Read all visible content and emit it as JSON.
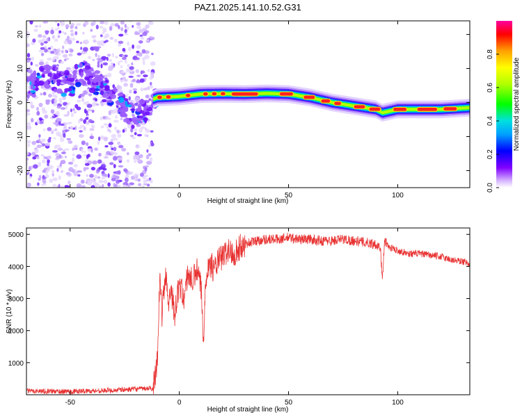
{
  "title": "PAZ1.2025.141.10.52.G31",
  "chart_data": [
    {
      "type": "heatmap",
      "name": "spectrogram",
      "xlabel": "Height of straight line (km)",
      "ylabel": "Frequency (Hz)",
      "xlim": [
        -70,
        133
      ],
      "ylim": [
        -25,
        24
      ],
      "xticks": [
        -50,
        0,
        50,
        100
      ],
      "yticks": [
        20,
        10,
        0,
        -10,
        -20
      ],
      "xtick_labels": [
        "-50",
        "0",
        "50",
        "100"
      ],
      "ytick_labels": [
        "20",
        "10",
        "0",
        "-10",
        "-20"
      ],
      "noise_region_x": [
        -70,
        -12
      ],
      "ridge": {
        "x": [
          -70,
          -65,
          -60,
          -55,
          -50,
          -45,
          -40,
          -35,
          -30,
          -25,
          -20,
          -15,
          -12,
          -10,
          0,
          10,
          20,
          30,
          40,
          50,
          60,
          70,
          80,
          90,
          93,
          100,
          110,
          120,
          133
        ],
        "y": [
          4,
          6,
          8,
          6,
          5,
          9,
          7,
          4,
          2,
          -1,
          -5,
          -2,
          1,
          1.5,
          1.8,
          2.5,
          2.6,
          2.5,
          2.7,
          2.5,
          1.5,
          0,
          -1,
          -2,
          -3,
          -2,
          -2,
          -2,
          -1.5
        ]
      },
      "colorbar": {
        "label": "Normalized spectral amplitude",
        "ticks": [
          0.0,
          0.2,
          0.4,
          0.6,
          0.8
        ],
        "tick_labels": [
          "0.0",
          "0.2",
          "0.4",
          "0.6",
          "0.8"
        ],
        "range": [
          0,
          1
        ],
        "colors": [
          "#ffffff",
          "#d8b8ff",
          "#8000ff",
          "#0000ff",
          "#00a0ff",
          "#00e0e0",
          "#00ff00",
          "#b0ff00",
          "#ffff00",
          "#ffa000",
          "#ff0000",
          "#ff00a0"
        ]
      }
    },
    {
      "type": "line",
      "name": "snr",
      "xlabel": "Height of straight line (km)",
      "ylabel": "SNR (10 * v/v)",
      "xlim": [
        -70,
        133
      ],
      "ylim": [
        0,
        5200
      ],
      "xticks": [
        -50,
        0,
        50,
        100
      ],
      "yticks": [
        1000,
        2000,
        3000,
        4000,
        5000
      ],
      "xtick_labels": [
        "-50",
        "0",
        "50",
        "100"
      ],
      "ytick_labels": [
        "1000",
        "2000",
        "3000",
        "4000",
        "5000"
      ],
      "color": "#e83030",
      "series": [
        {
          "name": "SNR",
          "x": [
            -70,
            -60,
            -50,
            -40,
            -30,
            -20,
            -12,
            -10,
            -9,
            -8,
            -7,
            -6,
            -5,
            -4,
            -2,
            0,
            2,
            4,
            6,
            8,
            10,
            11,
            12,
            14,
            16,
            18,
            20,
            22,
            25,
            28,
            30,
            35,
            40,
            45,
            50,
            55,
            60,
            65,
            70,
            75,
            80,
            85,
            90,
            92,
            93,
            94,
            96,
            100,
            105,
            110,
            115,
            120,
            125,
            130,
            133
          ],
          "y": [
            120,
            110,
            100,
            120,
            140,
            180,
            200,
            1200,
            3600,
            2500,
            3300,
            3700,
            2800,
            3400,
            2500,
            3500,
            3000,
            3800,
            3500,
            3900,
            3300,
            1600,
            3700,
            4100,
            3900,
            4200,
            4300,
            4500,
            4400,
            4600,
            4700,
            4800,
            4850,
            4850,
            4900,
            4850,
            4850,
            4800,
            4800,
            4850,
            4800,
            4750,
            4700,
            4600,
            3600,
            4800,
            4600,
            4500,
            4400,
            4400,
            4350,
            4300,
            4200,
            4150,
            4100
          ]
        }
      ]
    }
  ]
}
